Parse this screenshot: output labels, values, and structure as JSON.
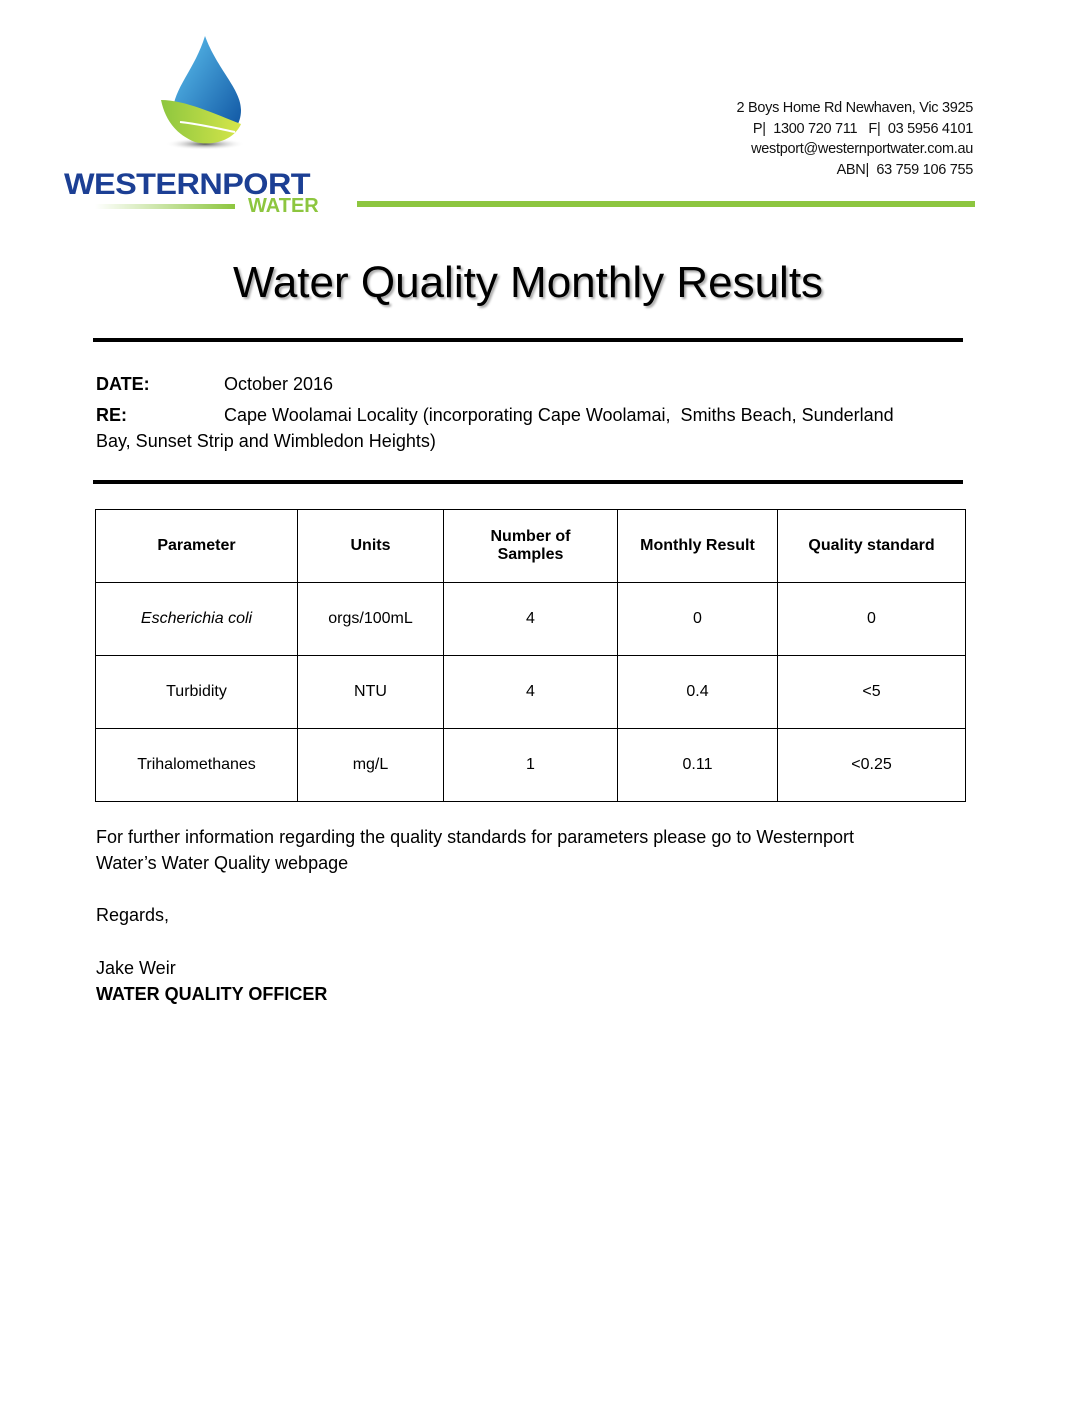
{
  "header": {
    "logo": {
      "name": "WESTERNPORT",
      "sub": "WATER",
      "icon": "water-drop-leaf-icon"
    },
    "address": [
      "2 Boys Home Rd Newhaven, Vic 3925",
      "P|  1300 720 711   F|  03 5956 4101",
      "westport@westernportwater.com.au",
      "ABN|  63 759 106 755"
    ],
    "accent": "#8dc63f",
    "brand_color": "#1c3f94"
  },
  "title": "Water Quality Monthly Results",
  "meta": {
    "date_label": "DATE:",
    "date_value": "October 2016",
    "re_label": "RE:",
    "re_value": "Cape Woolamai Locality (incorporating Cape Woolamai,  Smiths Beach, Sunderland",
    "re_value_cont": "Bay, Sunset Strip and Wimbledon Heights)"
  },
  "table": {
    "headers": [
      "Parameter",
      "Units",
      "Number of Samples",
      "Monthly Result",
      "Quality standard"
    ],
    "rows": [
      [
        "Escherichia coli",
        "orgs/100mL",
        "4",
        "0",
        "0"
      ],
      [
        "Turbidity",
        "NTU",
        "4",
        "0.4",
        "<5"
      ],
      [
        "Trihalomethanes",
        "mg/L",
        "1",
        "0.11",
        "<0.25"
      ]
    ]
  },
  "footer": {
    "info_1": "For further information regarding the quality standards for parameters please go to Westernport",
    "info_2": "Water’s Water Quality webpage",
    "regards": "Regards,",
    "name": "Jake Weir",
    "role": "WATER QUALITY OFFICER"
  }
}
